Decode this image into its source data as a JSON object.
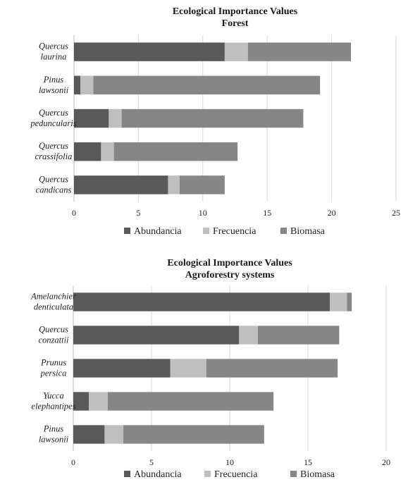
{
  "chart_data": [
    {
      "type": "bar",
      "orientation": "horizontal",
      "stacked": true,
      "title": "Ecological Importance Values",
      "subtitle": "Forest",
      "categories": [
        [
          "Quercus",
          "laurina"
        ],
        [
          "Pinus",
          "lawsonii"
        ],
        [
          "Quercus",
          "peduncularis"
        ],
        [
          "Quercus",
          "crassifolia"
        ],
        [
          "Quercus",
          "candicans"
        ]
      ],
      "series": [
        {
          "name": "Abundancia",
          "values": [
            11.7,
            0.5,
            2.7,
            2.1,
            7.3
          ]
        },
        {
          "name": "Frecuencia",
          "values": [
            1.8,
            1.0,
            1.0,
            1.0,
            0.9
          ]
        },
        {
          "name": "Biomasa",
          "values": [
            8.0,
            17.6,
            14.1,
            9.6,
            3.5
          ]
        }
      ],
      "xlim": [
        0,
        25
      ],
      "xticks": [
        "0",
        "5",
        "10",
        "15",
        "20",
        "25"
      ],
      "grid": true,
      "legend": "bottom"
    },
    {
      "type": "bar",
      "orientation": "horizontal",
      "stacked": true,
      "title": "Ecological Importance Values",
      "subtitle": "Agroforestry systems",
      "categories": [
        [
          "Amelanchier",
          "denticulata"
        ],
        [
          "Quercus",
          "conzattii"
        ],
        [
          "Prunus",
          "persica"
        ],
        [
          "Yucca",
          "elephantipes"
        ],
        [
          "Pinus",
          "lawsonii"
        ]
      ],
      "series": [
        {
          "name": "Abundancia",
          "values": [
            16.4,
            10.6,
            6.2,
            1.0,
            2.0
          ]
        },
        {
          "name": "Frecuencia",
          "values": [
            1.1,
            1.2,
            2.3,
            1.2,
            1.2
          ]
        },
        {
          "name": "Biomasa",
          "values": [
            0.3,
            5.2,
            8.4,
            10.6,
            9.0
          ]
        }
      ],
      "xlim": [
        0,
        20
      ],
      "xticks": [
        "0",
        "5",
        "10",
        "15",
        "20"
      ],
      "grid": true,
      "legend": "bottom"
    }
  ],
  "colors": {
    "Abundancia": "#595959",
    "Frecuencia": "#bfbfbf",
    "Biomasa": "#868686"
  }
}
